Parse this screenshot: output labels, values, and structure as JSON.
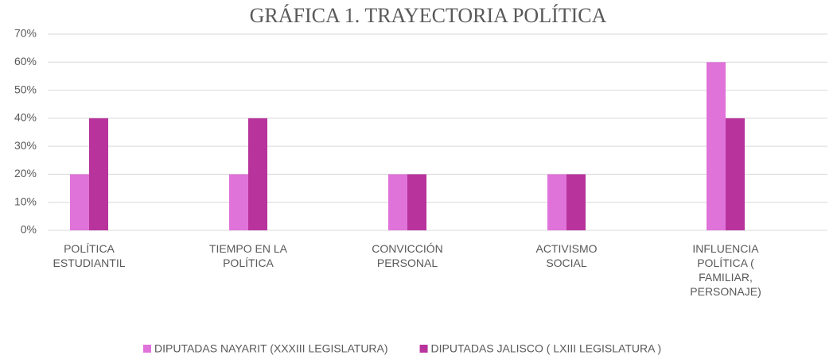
{
  "chart_data": {
    "type": "bar",
    "title": "GRÁFICA 1. TRAYECTORIA POLÍTICA",
    "categories": [
      "POLÍTICA ESTUDIANTIL",
      "TIEMPO EN LA POLÍTICA",
      "CONVICCIÓN PERSONAL",
      "ACTIVISMO SOCIAL",
      "INFLUENCIA POLÍTICA ( FAMILIAR, PERSONAJE)"
    ],
    "series": [
      {
        "name": "DIPUTADAS NAYARIT (XXXIII LEGISLATURA)",
        "color": "#e073d9",
        "values": [
          20,
          20,
          20,
          20,
          60
        ]
      },
      {
        "name": "DIPUTADAS JALISCO ( LXIII LEGISLATURA )",
        "color": "#b8339c",
        "values": [
          40,
          40,
          20,
          20,
          40
        ]
      }
    ],
    "ylim": [
      0,
      70
    ],
    "yticks": [
      {
        "value": 0,
        "label": "0%"
      },
      {
        "value": 10,
        "label": "10%"
      },
      {
        "value": 20,
        "label": "20%"
      },
      {
        "value": 30,
        "label": "30%"
      },
      {
        "value": 40,
        "label": "40%"
      },
      {
        "value": 50,
        "label": "50%"
      },
      {
        "value": 60,
        "label": "60%"
      },
      {
        "value": 70,
        "label": "70%"
      }
    ],
    "grid": true,
    "legend": "bottom"
  }
}
